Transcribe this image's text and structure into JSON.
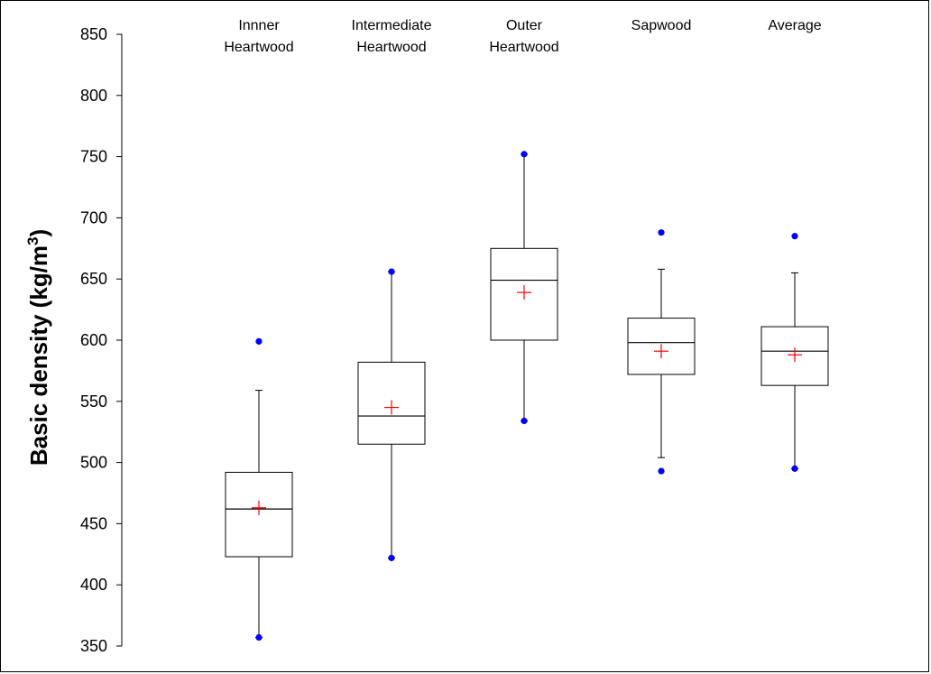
{
  "chart_data": {
    "type": "box",
    "ylabel": "Basic density (kg/m",
    "ylabel_sup": "3",
    "ylabel_close": ")",
    "ylim": [
      350,
      850
    ],
    "yticks": [
      350,
      400,
      450,
      500,
      550,
      600,
      650,
      700,
      750,
      800,
      850
    ],
    "categories": [
      {
        "label_lines": [
          "Innner",
          "Heartwood"
        ],
        "whisker_low": 357,
        "q1": 423,
        "median": 462,
        "q3": 492,
        "whisker_high": 559,
        "mean": 463,
        "outliers": [
          357,
          599
        ]
      },
      {
        "label_lines": [
          "Intermediate",
          "Heartwood"
        ],
        "whisker_low": 422,
        "q1": 515,
        "median": 538,
        "q3": 582,
        "whisker_high": 656,
        "mean": 545,
        "outliers": [
          422,
          656
        ]
      },
      {
        "label_lines": [
          "Outer",
          "Heartwood"
        ],
        "whisker_low": 534,
        "q1": 600,
        "median": 649,
        "q3": 675,
        "whisker_high": 752,
        "mean": 639,
        "outliers": [
          534,
          752
        ]
      },
      {
        "label_lines": [
          "Sapwood"
        ],
        "whisker_low": 504,
        "q1": 572,
        "median": 598,
        "q3": 618,
        "whisker_high": 658,
        "mean": 591,
        "outliers": [
          493,
          688
        ]
      },
      {
        "label_lines": [
          "Average"
        ],
        "whisker_low": 495,
        "q1": 563,
        "median": 591,
        "q3": 611,
        "whisker_high": 655,
        "mean": 588,
        "outliers": [
          495,
          685
        ]
      }
    ],
    "colors": {
      "box": "#000000",
      "mean_marker": "#ff0000",
      "outlier": "#0000ff"
    }
  }
}
